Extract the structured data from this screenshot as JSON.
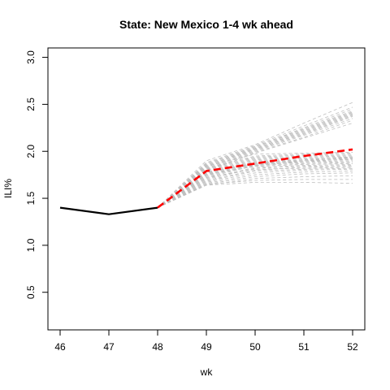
{
  "chart_data": {
    "type": "line",
    "title": "State: New Mexico 1-4 wk ahead",
    "xlabel": "wk",
    "ylabel": "ILI%",
    "xlim": [
      46,
      52
    ],
    "ylim": [
      0.1,
      3.1
    ],
    "x_ticks": [
      "46",
      "47",
      "48",
      "49",
      "50",
      "51",
      "52"
    ],
    "y_ticks": [
      "0.5",
      "1.0",
      "1.5",
      "2.0",
      "2.5",
      "3.0"
    ],
    "grid": false,
    "legend": "none",
    "colors": {
      "observed": "#000000",
      "forecast": "#ff0000",
      "ensemble": "#bebebe"
    },
    "observed": {
      "x": [
        46,
        47,
        48
      ],
      "y": [
        1.4,
        1.33,
        1.4
      ]
    },
    "forecast": {
      "x": [
        48,
        49,
        50,
        51,
        52
      ],
      "y": [
        1.4,
        1.79,
        1.87,
        1.95,
        2.02
      ]
    },
    "ensemble_x": [
      48,
      49,
      50,
      51,
      52
    ],
    "ensemble": [
      [
        1.4,
        1.9,
        2.07,
        2.3,
        2.52
      ],
      [
        1.4,
        1.88,
        2.06,
        2.27,
        2.47
      ],
      [
        1.4,
        1.87,
        2.05,
        2.25,
        2.45
      ],
      [
        1.4,
        1.86,
        2.05,
        2.24,
        2.43
      ],
      [
        1.4,
        1.85,
        2.04,
        2.23,
        2.42
      ],
      [
        1.4,
        1.85,
        2.03,
        2.22,
        2.41
      ],
      [
        1.4,
        1.84,
        2.03,
        2.21,
        2.4
      ],
      [
        1.4,
        1.83,
        2.02,
        2.2,
        2.39
      ],
      [
        1.4,
        1.83,
        2.02,
        2.19,
        2.38
      ],
      [
        1.4,
        1.82,
        2.01,
        2.18,
        2.37
      ],
      [
        1.4,
        1.81,
        2.0,
        2.17,
        2.35
      ],
      [
        1.4,
        1.8,
        1.99,
        2.15,
        2.33
      ],
      [
        1.4,
        1.79,
        1.98,
        2.14,
        2.3
      ],
      [
        1.4,
        1.84,
        1.97,
        1.98,
        1.99
      ],
      [
        1.4,
        1.82,
        1.95,
        1.97,
        1.98
      ],
      [
        1.4,
        1.81,
        1.94,
        1.96,
        1.97
      ],
      [
        1.4,
        1.8,
        1.93,
        1.95,
        1.96
      ],
      [
        1.4,
        1.79,
        1.92,
        1.94,
        1.95
      ],
      [
        1.4,
        1.78,
        1.91,
        1.93,
        1.94
      ],
      [
        1.4,
        1.77,
        1.9,
        1.92,
        1.93
      ],
      [
        1.4,
        1.76,
        1.89,
        1.91,
        1.92
      ],
      [
        1.4,
        1.75,
        1.88,
        1.9,
        1.91
      ],
      [
        1.4,
        1.74,
        1.87,
        1.89,
        1.9
      ],
      [
        1.4,
        1.73,
        1.86,
        1.88,
        1.89
      ],
      [
        1.4,
        1.72,
        1.85,
        1.87,
        1.88
      ],
      [
        1.4,
        1.71,
        1.83,
        1.85,
        1.86
      ],
      [
        1.4,
        1.7,
        1.82,
        1.84,
        1.85
      ],
      [
        1.4,
        1.69,
        1.8,
        1.83,
        1.84
      ],
      [
        1.4,
        1.68,
        1.79,
        1.81,
        1.82
      ],
      [
        1.4,
        1.67,
        1.77,
        1.8,
        1.81
      ],
      [
        1.4,
        1.66,
        1.75,
        1.78,
        1.79
      ],
      [
        1.4,
        1.65,
        1.73,
        1.76,
        1.77
      ],
      [
        1.4,
        1.64,
        1.71,
        1.73,
        1.74
      ],
      [
        1.4,
        1.65,
        1.69,
        1.7,
        1.7
      ],
      [
        1.4,
        1.64,
        1.67,
        1.67,
        1.66
      ],
      [
        1.4,
        1.75,
        1.84,
        1.86,
        1.87
      ],
      [
        1.4,
        1.78,
        1.86,
        1.9,
        1.93
      ],
      [
        1.4,
        1.76,
        1.85,
        1.89,
        1.92
      ],
      [
        1.4,
        1.77,
        1.87,
        1.91,
        1.94
      ],
      [
        1.4,
        1.72,
        1.81,
        1.82,
        1.83
      ]
    ]
  }
}
